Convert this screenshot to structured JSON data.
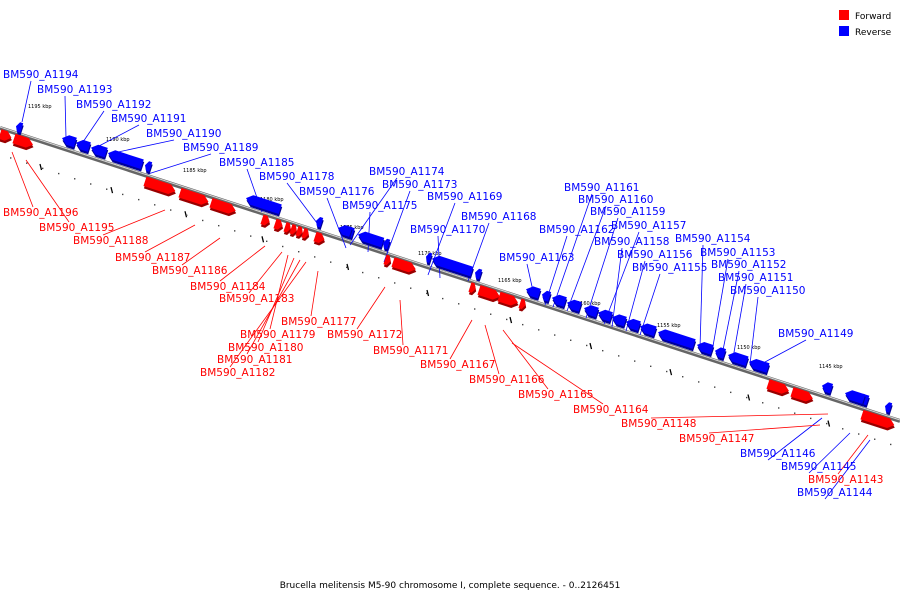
{
  "caption": "Brucella melitensis M5-90 chromosome I, complete sequence. - 0..2126451",
  "legend": [
    {
      "label": "Forward",
      "color": "#ff0000"
    },
    {
      "label": "Reverse",
      "color": "#0000ff"
    }
  ],
  "colors": {
    "forward": "#ff0000",
    "reverse": "#0000ff",
    "backbone": "#777777"
  },
  "ticks": [
    "1195 kbp",
    "1190 kbp",
    "1185 kbp",
    "1180 kbp",
    "1175 kbp",
    "1170 kbp",
    "1165 kbp",
    "1160 kbp",
    "1155 kbp",
    "1150 kbp",
    "1145 kbp"
  ],
  "genes": [
    {
      "id": "BM590_A1194",
      "strand": "reverse"
    },
    {
      "id": "BM590_A1193",
      "strand": "reverse"
    },
    {
      "id": "BM590_A1192",
      "strand": "reverse"
    },
    {
      "id": "BM590_A1191",
      "strand": "reverse"
    },
    {
      "id": "BM590_A1190",
      "strand": "reverse"
    },
    {
      "id": "BM590_A1189",
      "strand": "reverse"
    },
    {
      "id": "BM590_A1185",
      "strand": "reverse"
    },
    {
      "id": "BM590_A1178",
      "strand": "reverse"
    },
    {
      "id": "BM590_A1176",
      "strand": "reverse"
    },
    {
      "id": "BM590_A1175",
      "strand": "reverse"
    },
    {
      "id": "BM590_A1174",
      "strand": "reverse"
    },
    {
      "id": "BM590_A1173",
      "strand": "reverse"
    },
    {
      "id": "BM590_A1169",
      "strand": "reverse"
    },
    {
      "id": "BM590_A1170",
      "strand": "reverse"
    },
    {
      "id": "BM590_A1168",
      "strand": "reverse"
    },
    {
      "id": "BM590_A1163",
      "strand": "reverse"
    },
    {
      "id": "BM590_A1162",
      "strand": "reverse"
    },
    {
      "id": "BM590_A1161",
      "strand": "reverse"
    },
    {
      "id": "BM590_A1160",
      "strand": "reverse"
    },
    {
      "id": "BM590_A1159",
      "strand": "reverse"
    },
    {
      "id": "BM590_A1157",
      "strand": "reverse"
    },
    {
      "id": "BM590_A1158",
      "strand": "reverse"
    },
    {
      "id": "BM590_A1156",
      "strand": "reverse"
    },
    {
      "id": "BM590_A1155",
      "strand": "reverse"
    },
    {
      "id": "BM590_A1154",
      "strand": "reverse"
    },
    {
      "id": "BM590_A1153",
      "strand": "reverse"
    },
    {
      "id": "BM590_A1152",
      "strand": "reverse"
    },
    {
      "id": "BM590_A1151",
      "strand": "reverse"
    },
    {
      "id": "BM590_A1150",
      "strand": "reverse"
    },
    {
      "id": "BM590_A1149",
      "strand": "reverse"
    },
    {
      "id": "BM590_A1146",
      "strand": "reverse"
    },
    {
      "id": "BM590_A1145",
      "strand": "reverse"
    },
    {
      "id": "BM590_A1144",
      "strand": "reverse"
    },
    {
      "id": "BM590_A1196",
      "strand": "forward"
    },
    {
      "id": "BM590_A1195",
      "strand": "forward"
    },
    {
      "id": "BM590_A1188",
      "strand": "forward"
    },
    {
      "id": "BM590_A1187",
      "strand": "forward"
    },
    {
      "id": "BM590_A1186",
      "strand": "forward"
    },
    {
      "id": "BM590_A1184",
      "strand": "forward"
    },
    {
      "id": "BM590_A1183",
      "strand": "forward"
    },
    {
      "id": "BM590_A1177",
      "strand": "forward"
    },
    {
      "id": "BM590_A1179",
      "strand": "forward"
    },
    {
      "id": "BM590_A1180",
      "strand": "forward"
    },
    {
      "id": "BM590_A1181",
      "strand": "forward"
    },
    {
      "id": "BM590_A1182",
      "strand": "forward"
    },
    {
      "id": "BM590_A1172",
      "strand": "forward"
    },
    {
      "id": "BM590_A1171",
      "strand": "forward"
    },
    {
      "id": "BM590_A1167",
      "strand": "forward"
    },
    {
      "id": "BM590_A1166",
      "strand": "forward"
    },
    {
      "id": "BM590_A1165",
      "strand": "forward"
    },
    {
      "id": "BM590_A1164",
      "strand": "forward"
    },
    {
      "id": "BM590_A1148",
      "strand": "forward"
    },
    {
      "id": "BM590_A1147",
      "strand": "forward"
    },
    {
      "id": "BM590_A1143",
      "strand": "forward"
    }
  ]
}
